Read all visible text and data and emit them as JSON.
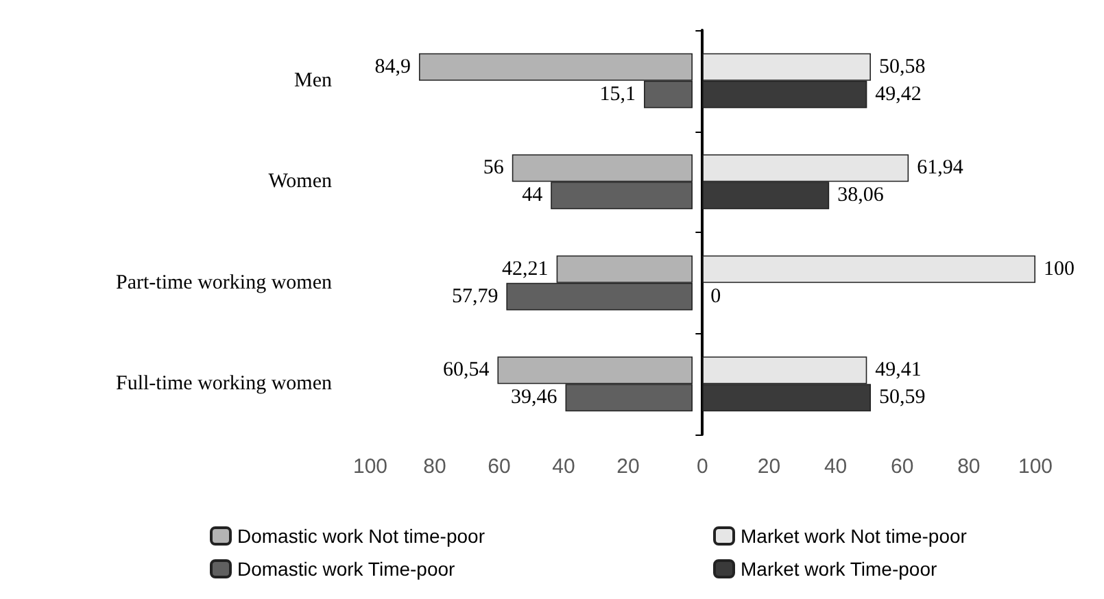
{
  "chart_data": [
    {
      "type": "bar",
      "orientation": "horizontal",
      "categories": [
        "Men",
        "Women",
        "Part-time working women",
        "Full-time working women"
      ],
      "series": [
        {
          "name": "Domastic work Not time-poor",
          "color": "#b3b3b3",
          "values": [
            84.9,
            56,
            42.21,
            60.54
          ],
          "value_labels": [
            "84,9",
            "56",
            "42,21",
            "60,54"
          ]
        },
        {
          "name": "Domastic work Time-poor",
          "color": "#606060",
          "values": [
            15.1,
            44,
            57.79,
            39.46
          ],
          "value_labels": [
            "15,1",
            "44",
            "57,79",
            "39,46"
          ]
        }
      ],
      "xlim": [
        100,
        0
      ],
      "xticks": [
        100,
        80,
        60,
        40,
        20
      ],
      "grid": false,
      "legend": "bottom"
    },
    {
      "type": "bar",
      "orientation": "horizontal",
      "tick_labels": "x",
      "series": [
        {
          "name": "Market work Not time-poor",
          "color": "#e6e6e6",
          "values": [
            50.58,
            61.94,
            100,
            49.41
          ],
          "value_labels": [
            "50,58",
            "61,94",
            "100",
            "49,41"
          ]
        },
        {
          "name": "Market work Time-poor",
          "color": "#3a3a3a",
          "values": [
            49.42,
            38.06,
            0,
            50.59
          ],
          "value_labels": [
            "49,42",
            "38,06",
            "0",
            "50,59"
          ]
        }
      ],
      "xlim": [
        0,
        100
      ],
      "xticks": [
        0,
        20,
        40,
        60,
        80,
        100
      ],
      "grid": false,
      "legend": "bottom"
    }
  ]
}
